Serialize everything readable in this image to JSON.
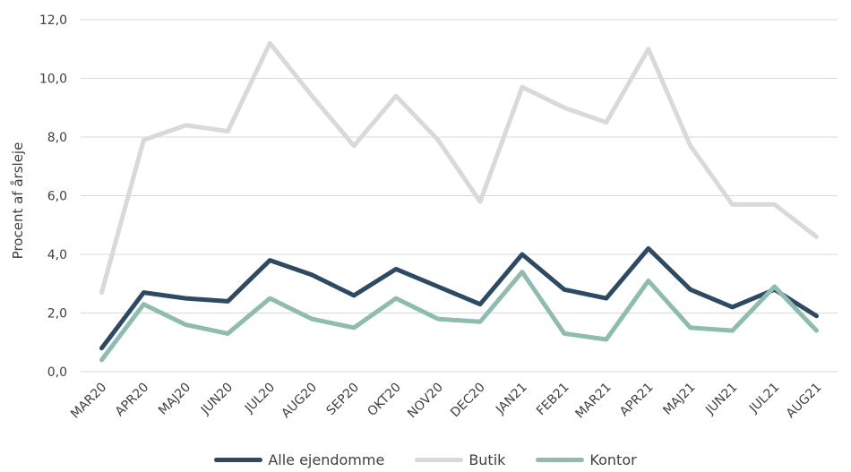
{
  "chart_data": {
    "type": "line",
    "ylabel": "Procent af årsleje",
    "ylim": [
      0,
      12
    ],
    "yticks": [
      "0,0",
      "2,0",
      "4,0",
      "6,0",
      "8,0",
      "10,0",
      "12,0"
    ],
    "grid": true,
    "legend_position": "bottom",
    "categories": [
      "MAR20",
      "APR20",
      "MAJ20",
      "JUN20",
      "JUL20",
      "AUG20",
      "SEP20",
      "OKT20",
      "NOV20",
      "DEC20",
      "JAN21",
      "FEB21",
      "MAR21",
      "APR21",
      "MAJ21",
      "JUN21",
      "JUL21",
      "AUG21"
    ],
    "series": [
      {
        "name": "Alle ejendomme",
        "color": "#2e4a63",
        "values": [
          0.8,
          2.7,
          2.5,
          2.4,
          3.8,
          3.3,
          2.6,
          3.5,
          2.9,
          2.3,
          4.0,
          2.8,
          2.5,
          4.2,
          2.8,
          2.2,
          2.8,
          1.9
        ]
      },
      {
        "name": "Butik",
        "color": "#d9d9d9",
        "values": [
          2.7,
          7.9,
          8.4,
          8.2,
          11.2,
          9.4,
          7.7,
          9.4,
          7.9,
          5.8,
          9.7,
          9.0,
          8.5,
          11.0,
          7.7,
          5.7,
          5.7,
          4.6
        ]
      },
      {
        "name": "Kontor",
        "color": "#8fbcaf",
        "values": [
          0.4,
          2.3,
          1.6,
          1.3,
          2.5,
          1.8,
          1.5,
          2.5,
          1.8,
          1.7,
          3.4,
          1.3,
          1.1,
          3.1,
          1.5,
          1.4,
          2.9,
          1.4
        ]
      }
    ]
  }
}
